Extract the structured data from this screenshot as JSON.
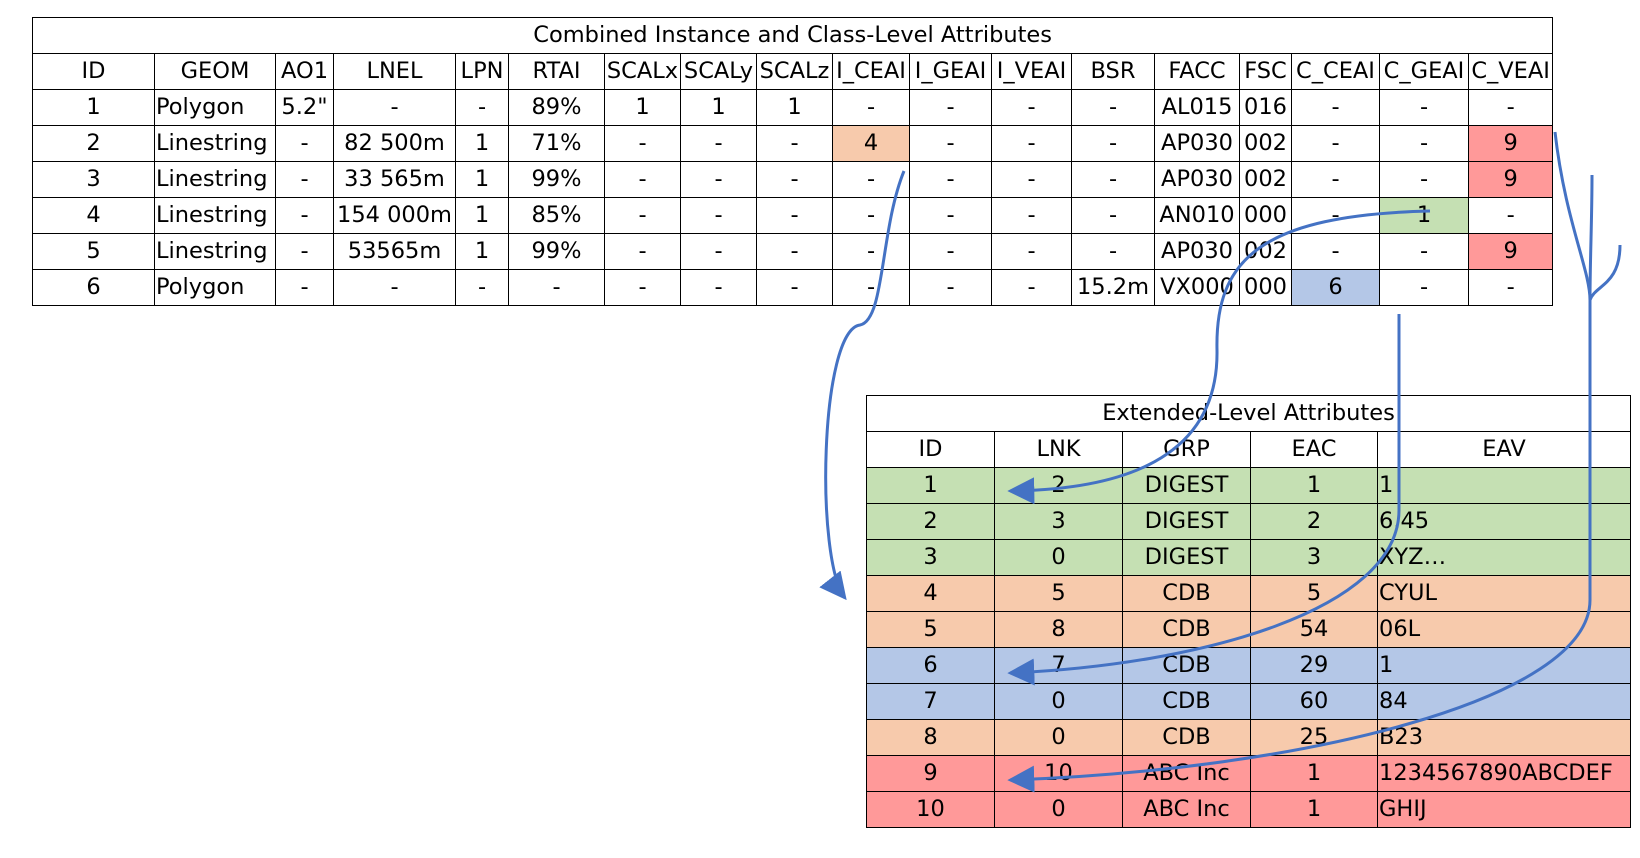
{
  "main_table": {
    "title": "Combined Instance and Class-Level Attributes",
    "headers": [
      "ID",
      "GEOM",
      "AO1",
      "LNEL",
      "LPN",
      "RTAI",
      "SCALx",
      "SCALy",
      "SCALz",
      "I_CEAI",
      "I_GEAI",
      "I_VEAI",
      "BSR",
      "FACC",
      "FSC",
      "C_CEAI",
      "C_GEAI",
      "C_VEAI"
    ],
    "rows": [
      [
        "1",
        "Polygon",
        "5.2\"",
        "-",
        "-",
        "89%",
        "1",
        "1",
        "1",
        "-",
        "-",
        "-",
        "-",
        "AL015",
        "016",
        "-",
        "-",
        "-"
      ],
      [
        "2",
        "Linestring",
        "-",
        "82 500m",
        "1",
        "71%",
        "-",
        "-",
        "-",
        "4",
        "-",
        "-",
        "-",
        "AP030",
        "002",
        "-",
        "-",
        "9"
      ],
      [
        "3",
        "Linestring",
        "-",
        "33 565m",
        "1",
        "99%",
        "-",
        "-",
        "-",
        "-",
        "-",
        "-",
        "-",
        "AP030",
        "002",
        "-",
        "-",
        "9"
      ],
      [
        "4",
        "Linestring",
        "-",
        "154 000m",
        "1",
        "85%",
        "-",
        "-",
        "-",
        "-",
        "-",
        "-",
        "-",
        "AN010",
        "000",
        "-",
        "1",
        "-"
      ],
      [
        "5",
        "Linestring",
        "-",
        "53565m",
        "1",
        "99%",
        "-",
        "-",
        "-",
        "-",
        "-",
        "-",
        "-",
        "AP030",
        "002",
        "-",
        "-",
        "9"
      ],
      [
        "6",
        "Polygon",
        "-",
        "-",
        "-",
        "-",
        "-",
        "-",
        "-",
        "-",
        "-",
        "-",
        "15.2m",
        "VX000",
        "000",
        "6",
        "-",
        "-"
      ]
    ],
    "highlights": {
      "orange": "#f7caac",
      "red": "#ff9999",
      "green": "#c5e0b3",
      "blue": "#b4c7e7"
    }
  },
  "ext_table": {
    "title": "Extended-Level Attributes",
    "headers": [
      "ID",
      "LNK",
      "GRP",
      "EAC",
      "EAV"
    ],
    "rows": [
      [
        "1",
        "2",
        "DIGEST",
        "1",
        "1"
      ],
      [
        "2",
        "3",
        "DIGEST",
        "2",
        "6.45"
      ],
      [
        "3",
        "0",
        "DIGEST",
        "3",
        "XYZ…"
      ],
      [
        "4",
        "5",
        "CDB",
        "5",
        "CYUL"
      ],
      [
        "5",
        "8",
        "CDB",
        "54",
        "06L"
      ],
      [
        "6",
        "7",
        "CDB",
        "29",
        "1"
      ],
      [
        "7",
        "0",
        "CDB",
        "60",
        "84"
      ],
      [
        "8",
        "0",
        "CDB",
        "25",
        "B23"
      ],
      [
        "9",
        "10",
        "ABC Inc",
        "1",
        "1234567890ABCDEF"
      ],
      [
        "10",
        "0",
        "ABC Inc",
        "1",
        "GHIJ"
      ]
    ]
  },
  "arrow_color": "#4472c4"
}
